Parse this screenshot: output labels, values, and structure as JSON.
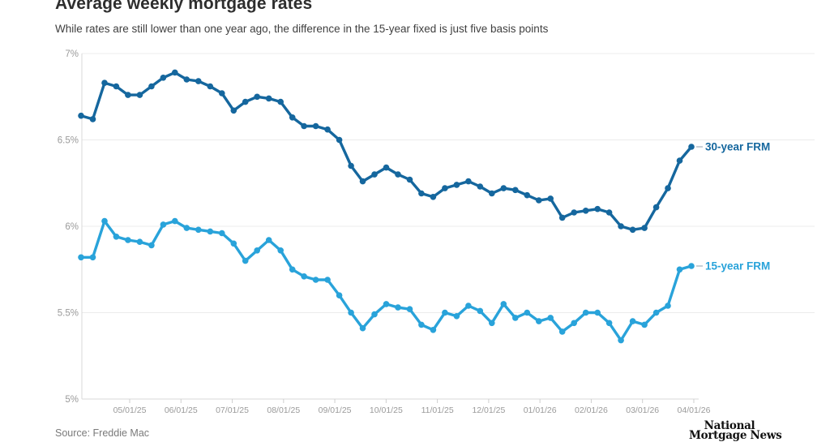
{
  "header": {
    "title": "Average weekly mortgage rates",
    "subtitle": "While rates are still lower than one year ago, the difference in the 15-year fixed is just five basis points"
  },
  "footer": {
    "source": "Source: Freddie Mac",
    "logo_line1": "National",
    "logo_line2": "Mortgage News"
  },
  "chart_data": {
    "type": "line",
    "title": "Average weekly mortgage rates",
    "subtitle": "While rates are still lower than one year ago, the difference in the 15-year fixed is just five basis points",
    "grid": true,
    "legend_position": "right-end-labels",
    "x_axis": {
      "tick_labels": [
        "05/01/25",
        "06/01/25",
        "07/01/25",
        "08/01/25",
        "09/01/25",
        "10/01/25",
        "11/01/25",
        "12/01/25",
        "01/01/26",
        "02/01/26",
        "03/01/26",
        "04/01/26"
      ]
    },
    "y_axis": {
      "tick_labels": [
        "7%",
        "6.5%",
        "6%",
        "5.5%",
        "5%"
      ],
      "min": 5,
      "max": 7
    },
    "colors": {
      "grid": "#ececec",
      "axis": "#d8d8d8",
      "tick_text": "#9a9a9a",
      "series_30yr": "#15679e",
      "series_15yr": "#29a3da"
    },
    "series": [
      {
        "name": "30-year FRM",
        "color": "#15679e",
        "values": [
          6.64,
          6.62,
          6.83,
          6.81,
          6.76,
          6.76,
          6.81,
          6.86,
          6.89,
          6.85,
          6.84,
          6.81,
          6.77,
          6.67,
          6.72,
          6.75,
          6.74,
          6.72,
          6.63,
          6.58,
          6.58,
          6.56,
          6.5,
          6.35,
          6.26,
          6.3,
          6.34,
          6.3,
          6.27,
          6.19,
          6.17,
          6.22,
          6.24,
          6.26,
          6.23,
          6.19,
          6.22,
          6.21,
          6.18,
          6.15,
          6.16,
          6.05,
          6.08,
          6.09,
          6.1,
          6.08,
          6.0,
          5.98,
          5.99,
          6.11,
          6.22,
          6.38,
          6.46
        ]
      },
      {
        "name": "15-year FRM",
        "color": "#29a3da",
        "values": [
          5.82,
          5.82,
          6.03,
          5.94,
          5.92,
          5.91,
          5.89,
          6.01,
          6.03,
          5.99,
          5.98,
          5.97,
          5.96,
          5.9,
          5.8,
          5.86,
          5.92,
          5.86,
          5.75,
          5.71,
          5.69,
          5.69,
          5.6,
          5.5,
          5.41,
          5.49,
          5.55,
          5.53,
          5.52,
          5.43,
          5.4,
          5.5,
          5.48,
          5.54,
          5.51,
          5.44,
          5.55,
          5.47,
          5.5,
          5.45,
          5.47,
          5.39,
          5.44,
          5.5,
          5.5,
          5.44,
          5.34,
          5.45,
          5.43,
          5.5,
          5.54,
          5.75,
          5.77
        ]
      }
    ]
  }
}
